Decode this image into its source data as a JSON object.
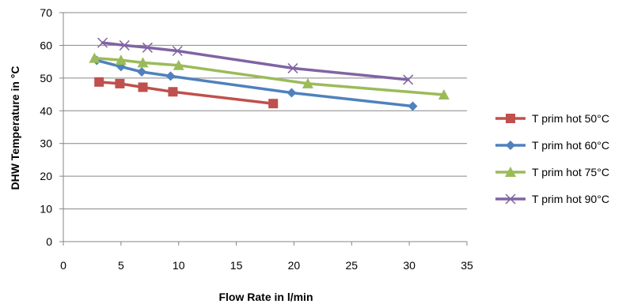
{
  "chart_data": {
    "type": "line",
    "title": "",
    "xlabel": "Flow Rate in l/min",
    "ylabel": "DHW Temperature in °C",
    "xlim": [
      0,
      35
    ],
    "ylim": [
      0,
      70
    ],
    "xticks": [
      0,
      5,
      10,
      15,
      20,
      25,
      30,
      35
    ],
    "yticks": [
      0,
      10,
      20,
      30,
      40,
      50,
      60,
      70
    ],
    "grid": "horizontal",
    "legend_position": "right",
    "series": [
      {
        "name": "T prim hot 50°C",
        "color": "#C0504D",
        "marker": "square",
        "x": [
          3.1,
          4.9,
          6.9,
          9.5,
          18.2
        ],
        "y": [
          48.8,
          48.3,
          47.2,
          45.8,
          42.2
        ]
      },
      {
        "name": "T prim hot 60°C",
        "color": "#4F81BD",
        "marker": "diamond",
        "x": [
          2.9,
          5.0,
          6.8,
          9.3,
          19.8,
          30.3
        ],
        "y": [
          55.4,
          53.5,
          51.9,
          50.6,
          45.5,
          41.4
        ]
      },
      {
        "name": "T prim hot 75°C",
        "color": "#9BBB59",
        "marker": "triangle",
        "x": [
          2.7,
          5.0,
          6.9,
          10.0,
          21.2,
          33.0
        ],
        "y": [
          56.1,
          55.5,
          54.7,
          53.9,
          48.3,
          44.9
        ]
      },
      {
        "name": "T prim hot 90°C",
        "color": "#8064A2",
        "marker": "x",
        "x": [
          3.4,
          5.3,
          7.3,
          9.9,
          19.9,
          29.9
        ],
        "y": [
          60.8,
          60.0,
          59.3,
          58.3,
          53.0,
          49.5
        ]
      }
    ]
  }
}
